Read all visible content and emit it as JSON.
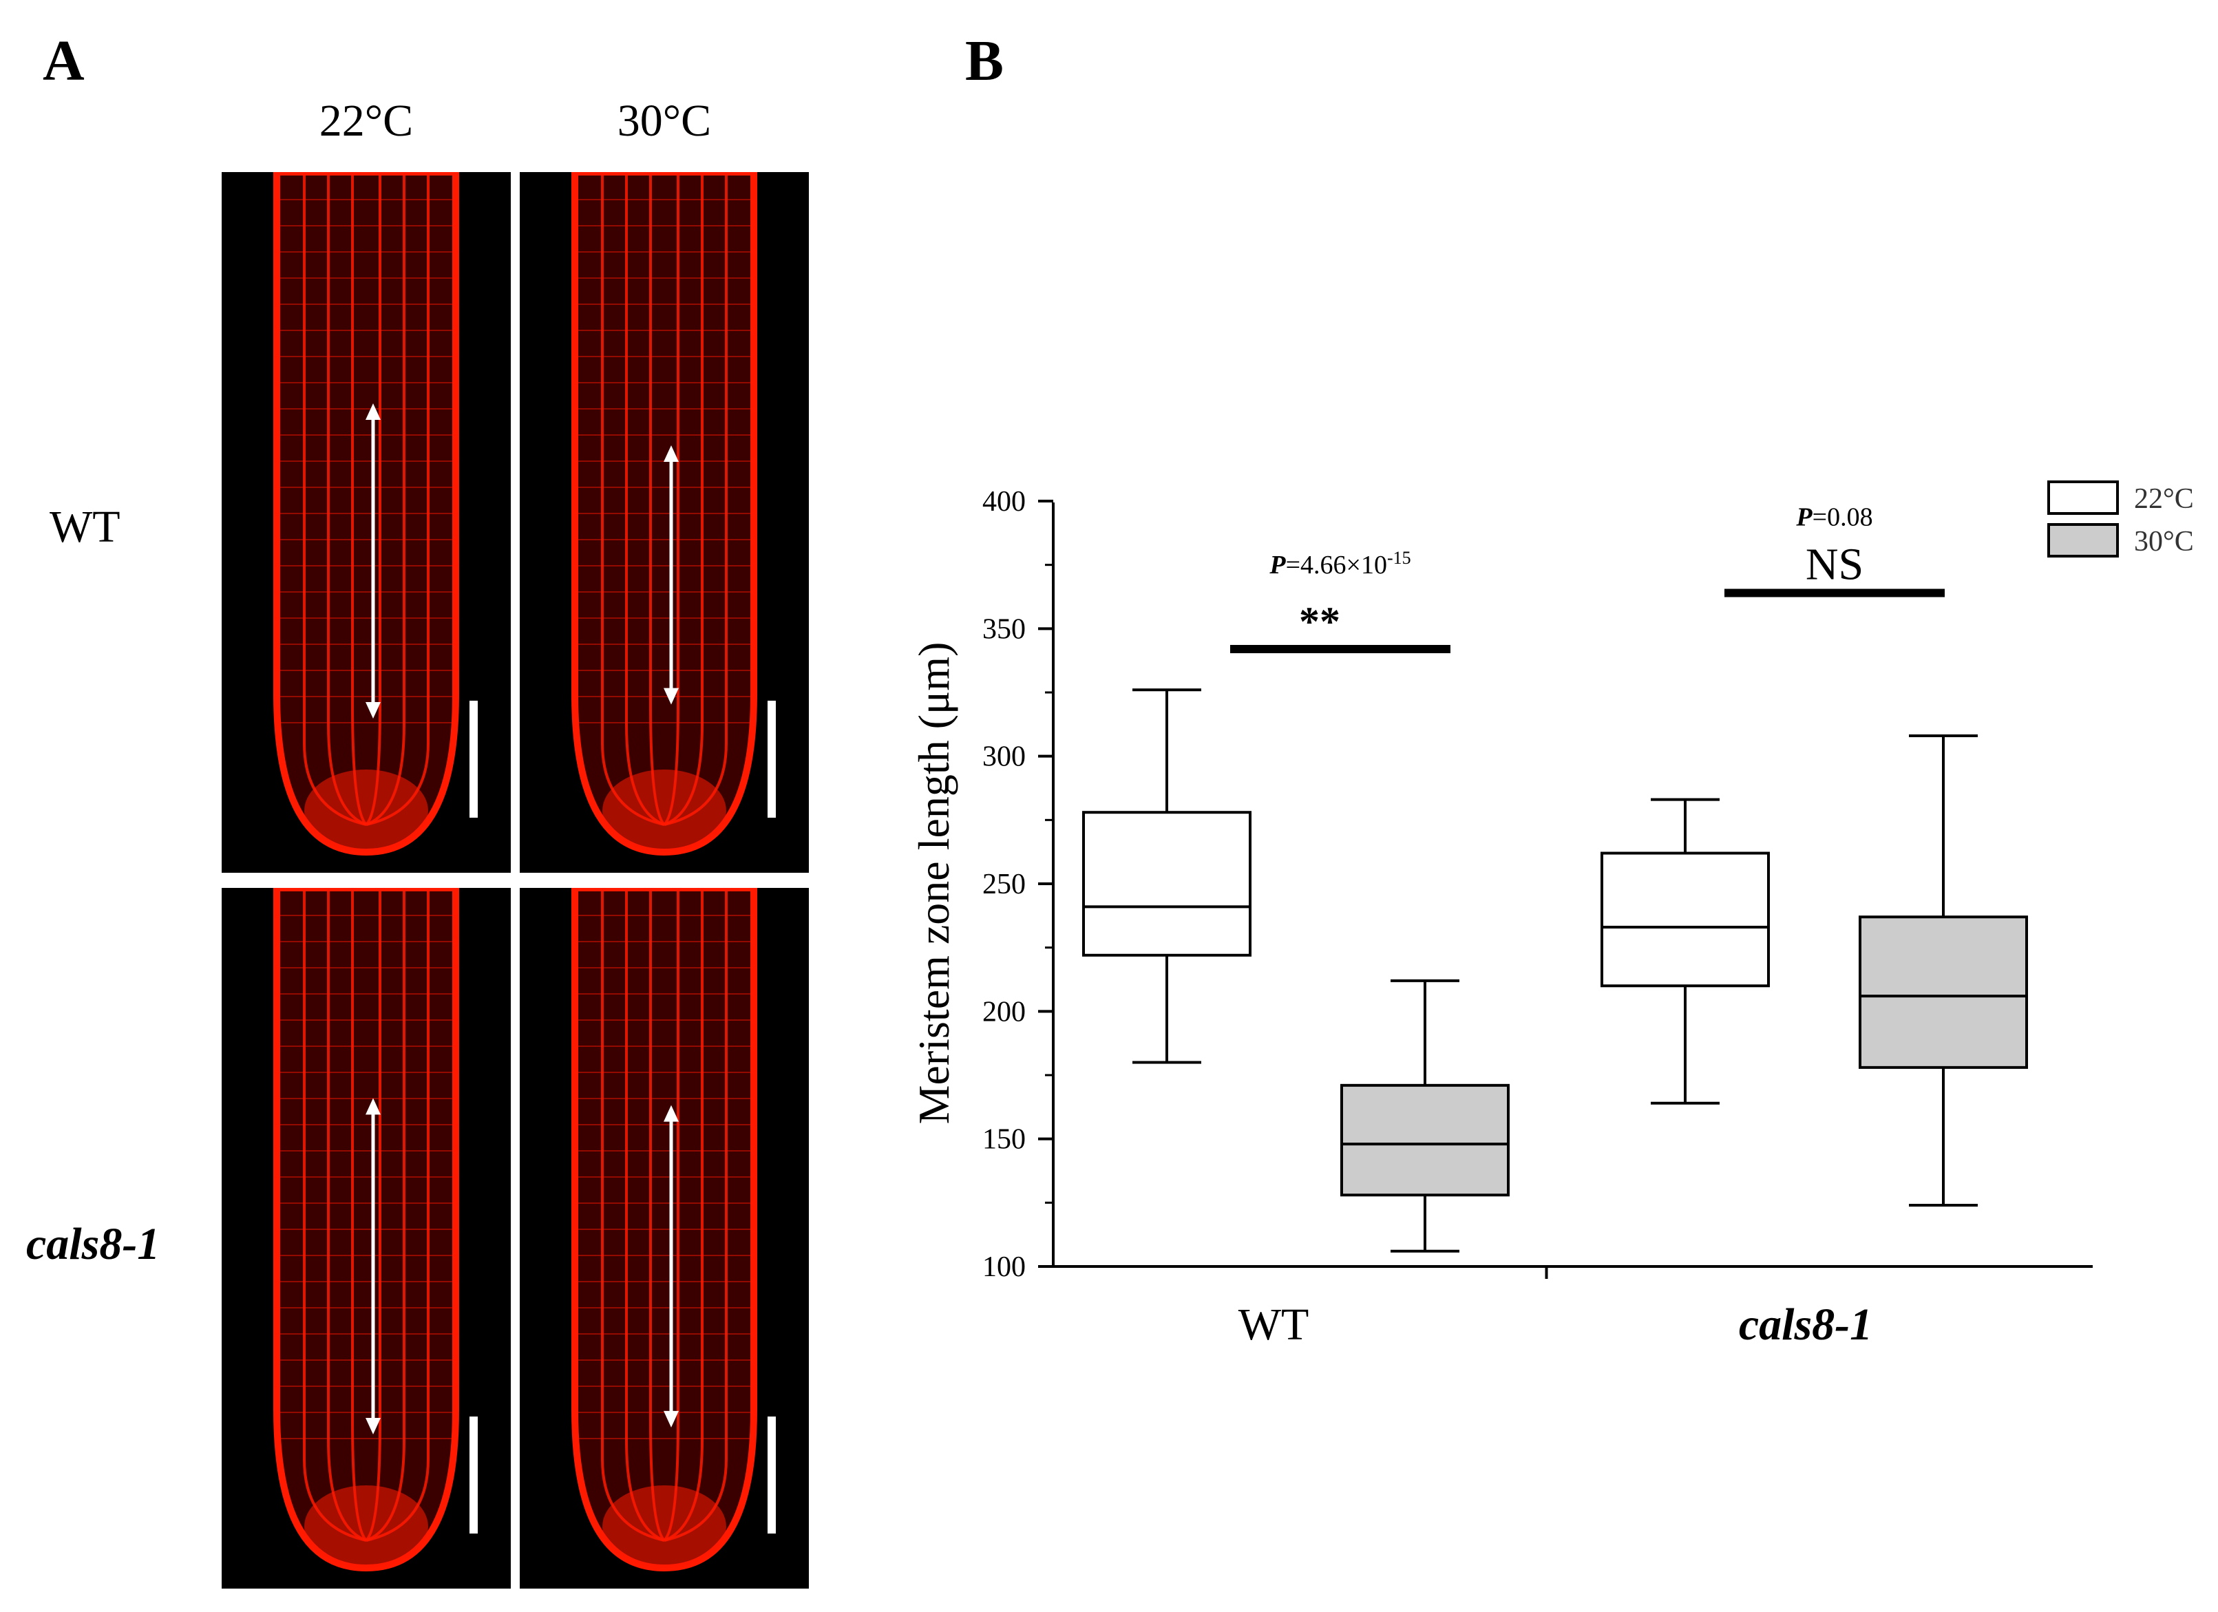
{
  "panel_a": {
    "letter": "A",
    "columns": [
      "22°C",
      "30°C"
    ],
    "rows": [
      "WT",
      "cals8-1"
    ],
    "images": [
      {
        "genotype": "WT",
        "temp": "22°C",
        "arrow_fraction": [
          0.33,
          0.78
        ]
      },
      {
        "genotype": "WT",
        "temp": "30°C",
        "arrow_fraction": [
          0.39,
          0.76
        ]
      },
      {
        "genotype": "cals8-1",
        "temp": "22°C",
        "arrow_fraction": [
          0.3,
          0.78
        ]
      },
      {
        "genotype": "cals8-1",
        "temp": "30°C",
        "arrow_fraction": [
          0.31,
          0.77
        ]
      }
    ],
    "stain_color": "#ff1a00"
  },
  "panel_b": {
    "letter": "B"
  },
  "chart_data": {
    "type": "box",
    "ylabel": "Meristem zone length (μm)",
    "ylim": [
      100,
      400
    ],
    "yticks": [
      100,
      150,
      200,
      250,
      300,
      350,
      400
    ],
    "categories": [
      "WT",
      "cals8-1"
    ],
    "series": [
      {
        "name": "22°C",
        "color": "#ffffff",
        "boxes": [
          {
            "category": "WT",
            "min": 180,
            "q1": 222,
            "median": 241,
            "q3": 278,
            "max": 326
          },
          {
            "category": "cals8-1",
            "min": 164,
            "q1": 210,
            "median": 233,
            "q3": 262,
            "max": 283
          }
        ]
      },
      {
        "name": "30°C",
        "color": "#cccccc",
        "boxes": [
          {
            "category": "WT",
            "min": 106,
            "q1": 128,
            "median": 148,
            "q3": 171,
            "max": 212
          },
          {
            "category": "cals8-1",
            "min": 124,
            "q1": 178,
            "median": 206,
            "q3": 237,
            "max": 308
          }
        ]
      }
    ],
    "annotations": [
      {
        "category": "WT",
        "p_label": "P",
        "p_value": "=4.66×10",
        "p_exp": "-15",
        "sig": "**",
        "bar_y": 342
      },
      {
        "category": "cals8-1",
        "p_label": "P",
        "p_value": "=0.08",
        "p_exp": "",
        "sig": "NS",
        "bar_y": 364
      }
    ],
    "legend_position": "top-right"
  }
}
